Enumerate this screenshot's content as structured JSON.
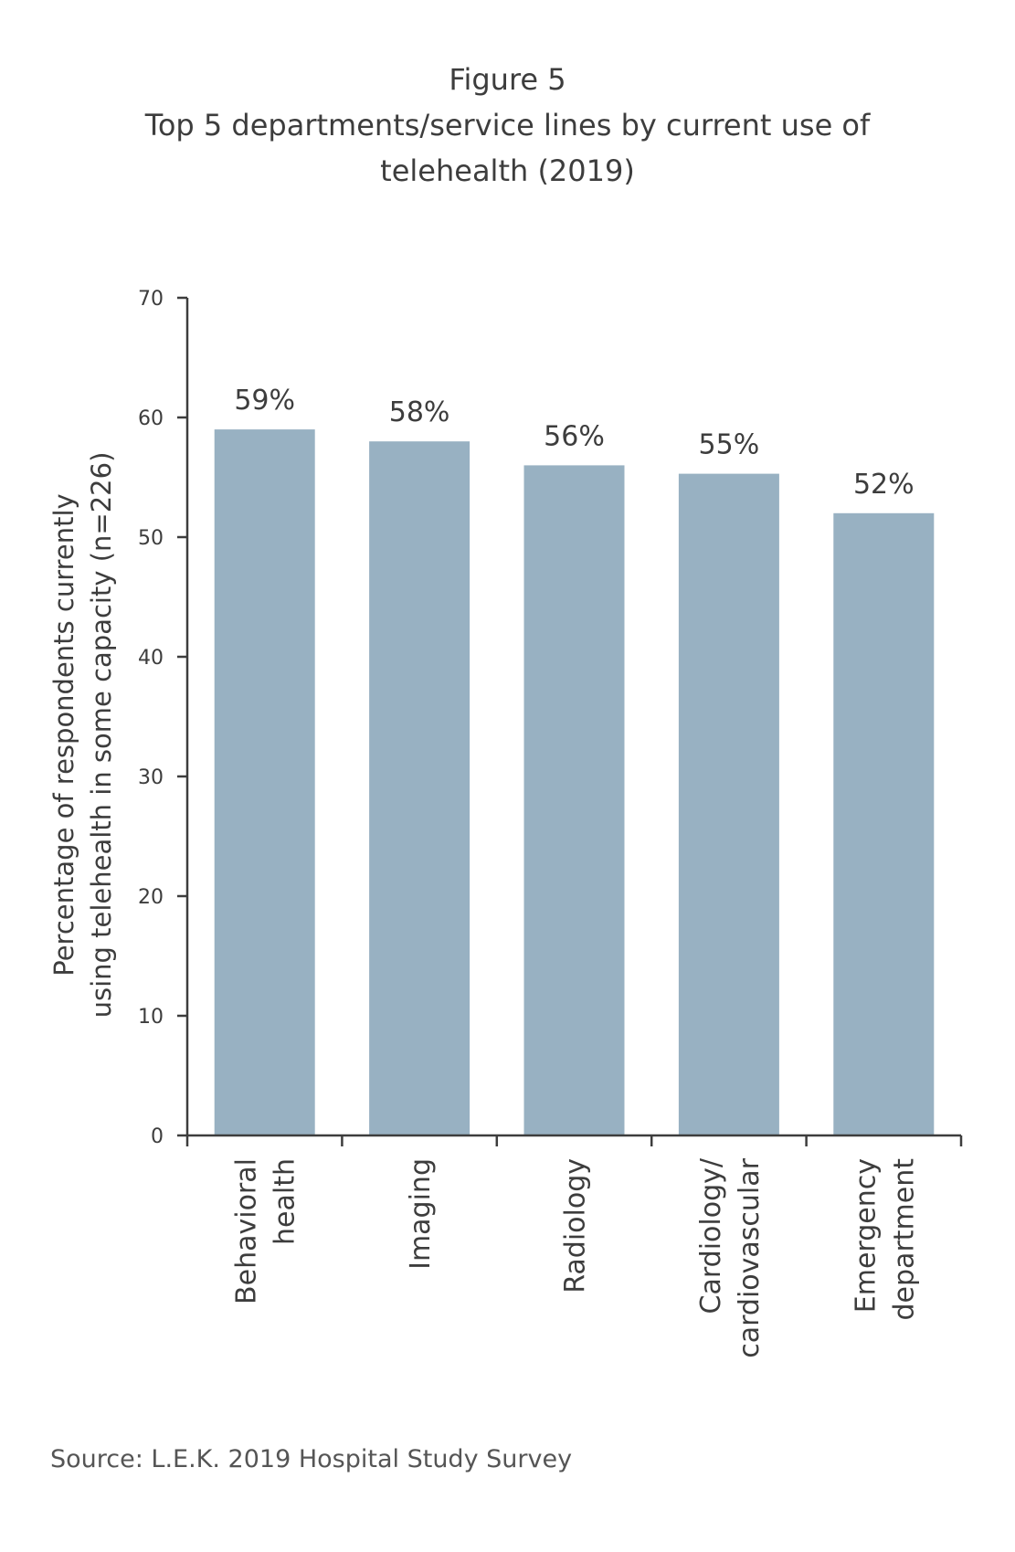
{
  "figure": {
    "label": "Figure 5",
    "title_line1": "Top 5 departments/service lines by current use of",
    "title_line2": "telehealth (2019)"
  },
  "source": "Source: L.E.K. 2019 Hospital Study Survey",
  "colors": {
    "bar": "#98b1c2",
    "axis": "#3d3d3d",
    "text": "#3d3d3d"
  },
  "chart_data": {
    "type": "bar",
    "title": "Top 5 departments/service lines by current use of telehealth (2019)",
    "categories": [
      [
        "Behavioral",
        "health"
      ],
      [
        "Imaging"
      ],
      [
        "Radiology"
      ],
      [
        "Cardiology/",
        "cardiovascular"
      ],
      [
        "Emergency",
        "department"
      ]
    ],
    "values": [
      59,
      58,
      56,
      55.3,
      52
    ],
    "data_labels": [
      "59%",
      "58%",
      "56%",
      "55%",
      "52%"
    ],
    "ylabel_line1": "Percentage of respondents currently",
    "ylabel_line2": "using telehealth in some capacity (n=226)",
    "xlabel": "",
    "ylim": [
      0,
      70
    ],
    "yticks": [
      0,
      10,
      20,
      30,
      40,
      50,
      60,
      70
    ],
    "grid": false,
    "legend": false
  }
}
